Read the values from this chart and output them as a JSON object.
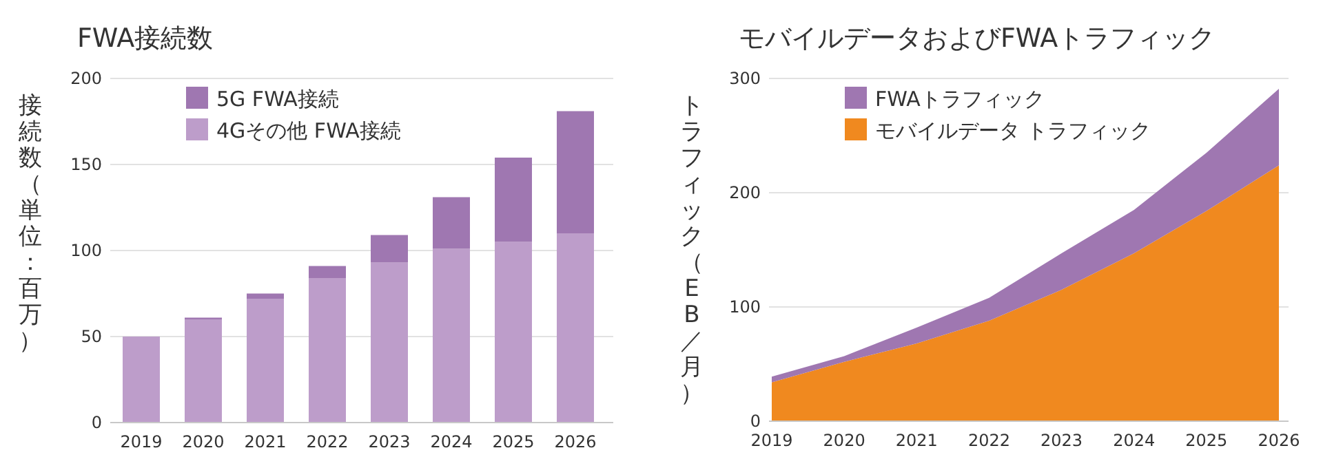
{
  "chart_data": [
    {
      "type": "bar",
      "title": "FWA接続数",
      "ylabel": "接続数（単位：百万）",
      "categories": [
        "2019",
        "2020",
        "2021",
        "2022",
        "2023",
        "2024",
        "2025",
        "2026"
      ],
      "stacked": true,
      "series": [
        {
          "name": "4Gその他 FWA接続",
          "color": "#bd9dca",
          "values": [
            50,
            60,
            72,
            84,
            93,
            101,
            105,
            110
          ]
        },
        {
          "name": "5G FWA接続",
          "color": "#9f77b1",
          "values": [
            0,
            1,
            3,
            7,
            16,
            30,
            49,
            71
          ]
        }
      ],
      "ylim": [
        0,
        200
      ],
      "yticks": [
        0,
        50,
        100,
        150,
        200
      ],
      "grid": "y",
      "legend": "top left"
    },
    {
      "type": "area",
      "title": "モバイルデータおよびFWAトラフィック",
      "ylabel": "トラフィック（EB／月）",
      "categories": [
        "2019",
        "2020",
        "2021",
        "2022",
        "2023",
        "2024",
        "2025",
        "2026"
      ],
      "stacked": true,
      "series": [
        {
          "name": "モバイルデータ トラフィック",
          "color": "#f0891f",
          "values": [
            34,
            52,
            68,
            88,
            115,
            147,
            184,
            224
          ]
        },
        {
          "name": "FWAトラフィック",
          "color": "#9f77b1",
          "values": [
            5,
            5,
            14,
            20,
            32,
            38,
            51,
            67
          ]
        }
      ],
      "ylim": [
        0,
        300
      ],
      "yticks": [
        0,
        100,
        200,
        300
      ],
      "grid": "y",
      "legend": "top left"
    }
  ]
}
